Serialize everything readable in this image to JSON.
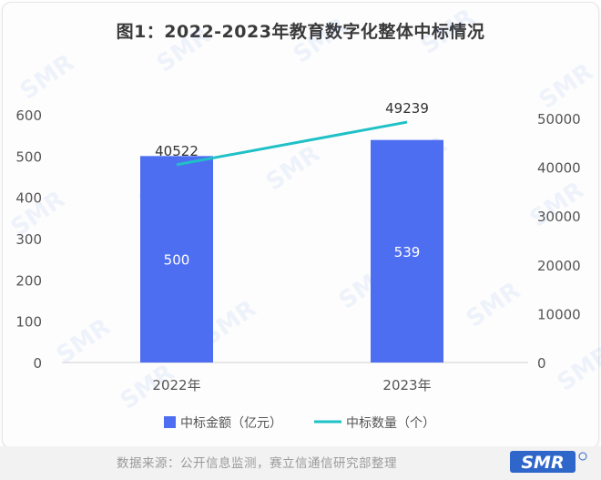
{
  "title": "图1：2022-2023年教育数字化整体中标情况",
  "source": "数据来源：公开信息监测，赛立信通信研究部整理",
  "logo_text": "SMR",
  "colors": {
    "bar": "#4e6ef2",
    "line": "#1fc1c6",
    "axis_text": "#555555",
    "baseline": "#d0d0d0"
  },
  "chart_data": {
    "type": "bar+line",
    "categories": [
      "2022年",
      "2023年"
    ],
    "series": [
      {
        "name": "中标金额（亿元）",
        "type": "bar",
        "axis": "left",
        "values": [
          500,
          539
        ],
        "labels": [
          "500",
          "539"
        ]
      },
      {
        "name": "中标数量（个）",
        "type": "line",
        "axis": "right",
        "values": [
          40522,
          49239
        ],
        "labels": [
          "40522",
          "49239"
        ]
      }
    ],
    "y_left": {
      "min": 0,
      "max": 600,
      "ticks": [
        "0",
        "100",
        "200",
        "300",
        "400",
        "500",
        "600"
      ]
    },
    "y_right": {
      "min": 0,
      "max": 50000,
      "ticks": [
        "0",
        "10000",
        "20000",
        "30000",
        "40000",
        "50000"
      ]
    },
    "legend_position": "bottom"
  }
}
